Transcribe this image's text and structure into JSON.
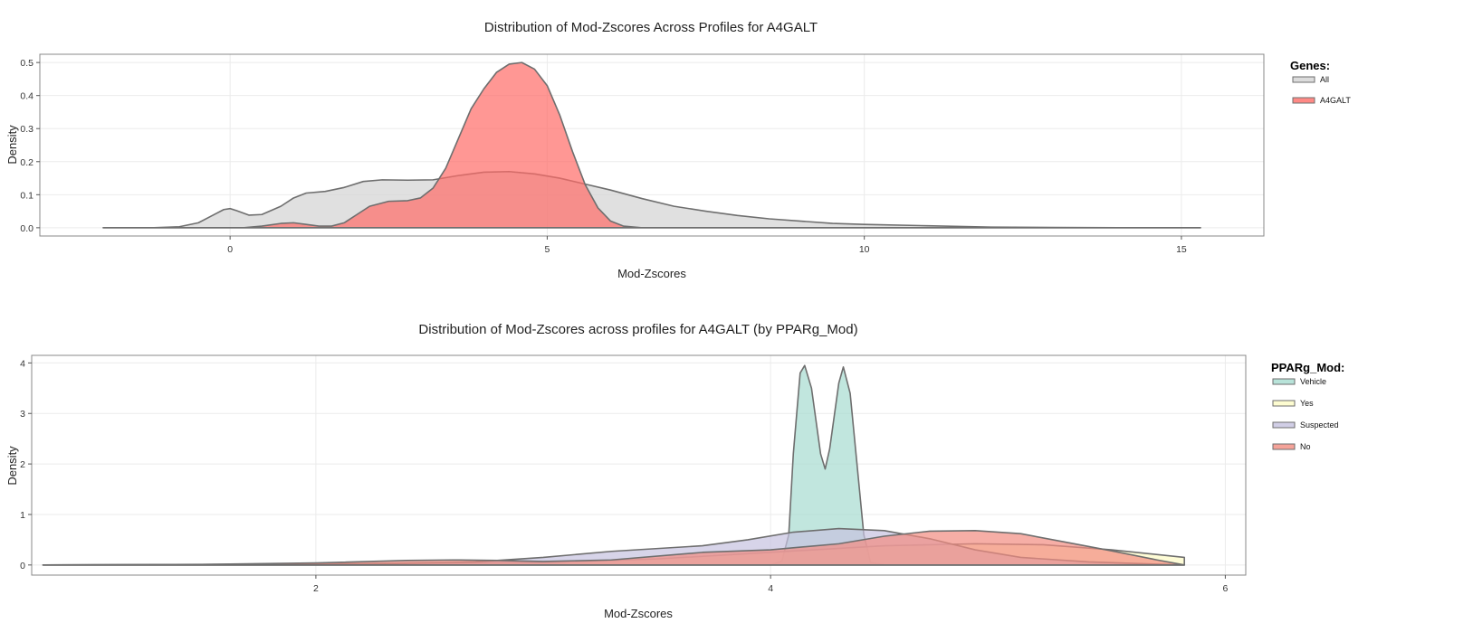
{
  "chart_data": [
    {
      "type": "area",
      "subtype": "density",
      "title": "Distribution of Mod-Zscores Across Profiles for A4GALT",
      "xlabel": "Mod-Zscores",
      "ylabel": "Density",
      "xlim": [
        -3,
        16.3
      ],
      "ylim": [
        -0.025,
        0.525
      ],
      "xticks": [
        0,
        5,
        10,
        15
      ],
      "yticks": [
        0.0,
        0.1,
        0.2,
        0.3,
        0.4,
        0.5
      ],
      "ytick_labels": [
        "0.0",
        "0.1",
        "0.2",
        "0.3",
        "0.4",
        "0.5"
      ],
      "grid": true,
      "legend": {
        "title": "Genes:",
        "position": "right"
      },
      "series": [
        {
          "name": "All",
          "fill": "#d3d3d3",
          "stroke": "#6e6e6e",
          "points": [
            [
              -2,
              0
            ],
            [
              -1.2,
              0
            ],
            [
              -0.8,
              0.003
            ],
            [
              -0.5,
              0.015
            ],
            [
              -0.3,
              0.035
            ],
            [
              -0.1,
              0.055
            ],
            [
              0,
              0.058
            ],
            [
              0.1,
              0.052
            ],
            [
              0.3,
              0.038
            ],
            [
              0.5,
              0.04
            ],
            [
              0.8,
              0.065
            ],
            [
              1.0,
              0.09
            ],
            [
              1.2,
              0.105
            ],
            [
              1.5,
              0.11
            ],
            [
              1.8,
              0.122
            ],
            [
              2.1,
              0.14
            ],
            [
              2.4,
              0.145
            ],
            [
              2.8,
              0.144
            ],
            [
              3.2,
              0.145
            ],
            [
              3.6,
              0.158
            ],
            [
              4.0,
              0.168
            ],
            [
              4.4,
              0.17
            ],
            [
              4.8,
              0.163
            ],
            [
              5.2,
              0.15
            ],
            [
              5.6,
              0.132
            ],
            [
              6.0,
              0.114
            ],
            [
              6.5,
              0.088
            ],
            [
              7.0,
              0.065
            ],
            [
              7.5,
              0.05
            ],
            [
              8.0,
              0.037
            ],
            [
              8.5,
              0.027
            ],
            [
              9.0,
              0.02
            ],
            [
              9.5,
              0.013
            ],
            [
              10.0,
              0.01
            ],
            [
              11.0,
              0.006
            ],
            [
              12.0,
              0.002
            ],
            [
              13.0,
              0.001
            ],
            [
              14.0,
              0
            ],
            [
              15.3,
              0
            ]
          ]
        },
        {
          "name": "A4GALT",
          "fill": "#ff6b66",
          "stroke": "#6e6e6e",
          "points": [
            [
              -2,
              0
            ],
            [
              0.2,
              0
            ],
            [
              0.5,
              0.005
            ],
            [
              0.8,
              0.013
            ],
            [
              1.0,
              0.015
            ],
            [
              1.2,
              0.01
            ],
            [
              1.4,
              0.005
            ],
            [
              1.6,
              0.005
            ],
            [
              1.8,
              0.015
            ],
            [
              2.0,
              0.04
            ],
            [
              2.2,
              0.065
            ],
            [
              2.5,
              0.08
            ],
            [
              2.8,
              0.082
            ],
            [
              3.0,
              0.09
            ],
            [
              3.2,
              0.12
            ],
            [
              3.4,
              0.18
            ],
            [
              3.6,
              0.27
            ],
            [
              3.8,
              0.36
            ],
            [
              4.0,
              0.42
            ],
            [
              4.2,
              0.47
            ],
            [
              4.4,
              0.495
            ],
            [
              4.6,
              0.5
            ],
            [
              4.8,
              0.48
            ],
            [
              5.0,
              0.43
            ],
            [
              5.2,
              0.34
            ],
            [
              5.4,
              0.23
            ],
            [
              5.6,
              0.13
            ],
            [
              5.8,
              0.06
            ],
            [
              6.0,
              0.02
            ],
            [
              6.2,
              0.005
            ],
            [
              6.5,
              0
            ],
            [
              15.3,
              0
            ]
          ]
        }
      ]
    },
    {
      "type": "area",
      "subtype": "density",
      "title": "Distribution of Mod-Zscores across profiles for A4GALT (by PPARg_Mod)",
      "xlabel": "Mod-Zscores",
      "ylabel": "Density",
      "xlim": [
        0.75,
        6.09
      ],
      "ylim": [
        -0.2,
        4.15
      ],
      "xticks": [
        2,
        4,
        6
      ],
      "yticks": [
        0,
        1,
        2,
        3,
        4
      ],
      "ytick_labels": [
        "0",
        "1",
        "2",
        "3",
        "4"
      ],
      "grid": true,
      "legend": {
        "title": "PPARg_Mod:",
        "position": "right"
      },
      "series": [
        {
          "name": "Vehicle",
          "fill": "#a6dcd0",
          "stroke": "#6e6e6e",
          "points": [
            [
              0.8,
              0
            ],
            [
              4.0,
              0
            ],
            [
              4.05,
              0.08
            ],
            [
              4.08,
              0.6
            ],
            [
              4.1,
              2.2
            ],
            [
              4.13,
              3.8
            ],
            [
              4.15,
              3.95
            ],
            [
              4.18,
              3.5
            ],
            [
              4.22,
              2.2
            ],
            [
              4.24,
              1.9
            ],
            [
              4.26,
              2.3
            ],
            [
              4.3,
              3.6
            ],
            [
              4.32,
              3.92
            ],
            [
              4.35,
              3.4
            ],
            [
              4.38,
              2.0
            ],
            [
              4.41,
              0.6
            ],
            [
              4.44,
              0.05
            ],
            [
              4.5,
              0
            ],
            [
              5.82,
              0
            ]
          ]
        },
        {
          "name": "Yes",
          "fill": "#fdfbc4",
          "stroke": "#6e6e6e",
          "points": [
            [
              0.8,
              0
            ],
            [
              2.0,
              0.02
            ],
            [
              3.0,
              0.05
            ],
            [
              3.5,
              0.12
            ],
            [
              4.0,
              0.25
            ],
            [
              4.5,
              0.38
            ],
            [
              4.9,
              0.42
            ],
            [
              5.2,
              0.4
            ],
            [
              5.5,
              0.3
            ],
            [
              5.82,
              0.15
            ]
          ]
        },
        {
          "name": "Suspected",
          "fill": "#c6c2e0",
          "stroke": "#6e6e6e",
          "points": [
            [
              0.8,
              0
            ],
            [
              1.8,
              0.01
            ],
            [
              2.3,
              0.03
            ],
            [
              2.7,
              0.06
            ],
            [
              3.0,
              0.15
            ],
            [
              3.3,
              0.27
            ],
            [
              3.7,
              0.38
            ],
            [
              3.9,
              0.5
            ],
            [
              4.1,
              0.65
            ],
            [
              4.3,
              0.72
            ],
            [
              4.5,
              0.68
            ],
            [
              4.7,
              0.52
            ],
            [
              4.9,
              0.3
            ],
            [
              5.1,
              0.15
            ],
            [
              5.4,
              0.06
            ],
            [
              5.82,
              0
            ]
          ]
        },
        {
          "name": "No",
          "fill": "#f28c80",
          "stroke": "#6e6e6e",
          "points": [
            [
              0.8,
              0
            ],
            [
              1.5,
              0.01
            ],
            [
              2.0,
              0.04
            ],
            [
              2.4,
              0.09
            ],
            [
              2.6,
              0.1
            ],
            [
              2.8,
              0.09
            ],
            [
              3.0,
              0.07
            ],
            [
              3.3,
              0.1
            ],
            [
              3.7,
              0.25
            ],
            [
              4.0,
              0.3
            ],
            [
              4.3,
              0.42
            ],
            [
              4.5,
              0.57
            ],
            [
              4.7,
              0.67
            ],
            [
              4.9,
              0.68
            ],
            [
              5.1,
              0.62
            ],
            [
              5.3,
              0.45
            ],
            [
              5.5,
              0.28
            ],
            [
              5.7,
              0.1
            ],
            [
              5.82,
              0
            ]
          ]
        }
      ]
    }
  ]
}
